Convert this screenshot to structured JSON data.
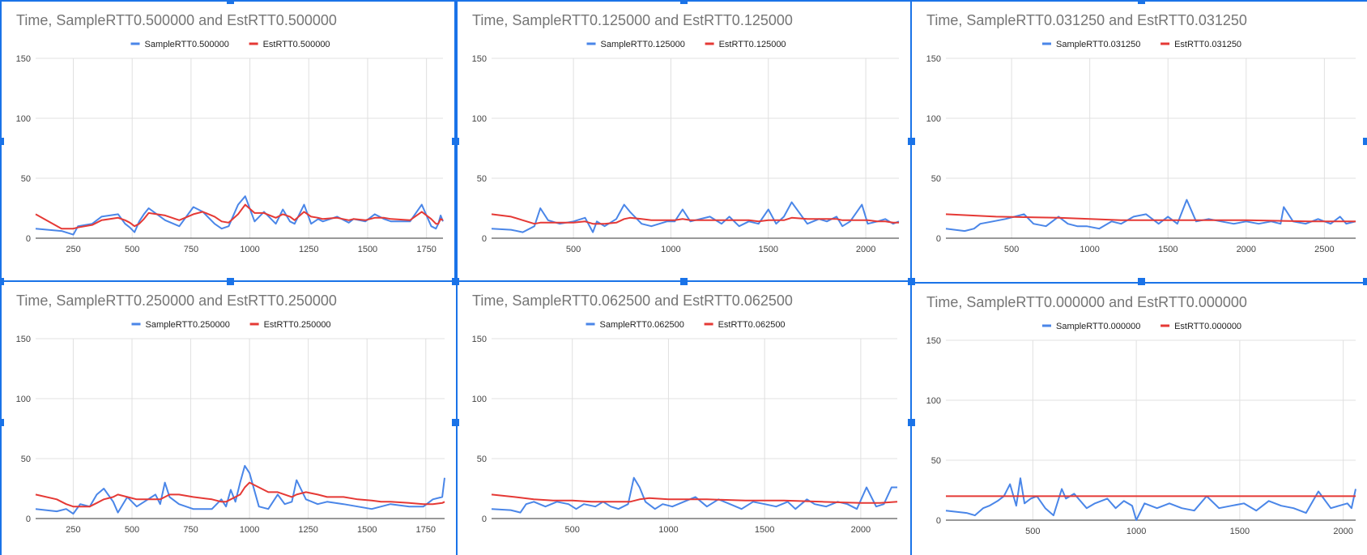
{
  "colors": {
    "sample": "#4a86e8",
    "est": "#e53935",
    "selection": "#1a73e8"
  },
  "chart_data": [
    {
      "type": "line",
      "title": "Time, SampleRTT0.500000 and EstRTT0.500000",
      "xlim": [
        90,
        1820
      ],
      "ylim": [
        0,
        150
      ],
      "xticks": [
        250,
        500,
        750,
        1000,
        1250,
        1500,
        1750
      ],
      "yticks": [
        0,
        50,
        100,
        150
      ],
      "series": [
        {
          "name": "SampleRTT0.500000",
          "x": [
            90,
            200,
            250,
            270,
            330,
            370,
            440,
            470,
            490,
            510,
            530,
            550,
            570,
            640,
            700,
            760,
            800,
            850,
            880,
            910,
            950,
            980,
            1020,
            1060,
            1110,
            1140,
            1170,
            1190,
            1230,
            1260,
            1290,
            1310,
            1370,
            1420,
            1440,
            1490,
            1530,
            1570,
            1600,
            1680,
            1730,
            1770,
            1790,
            1800,
            1810,
            1820
          ],
          "y": [
            8,
            6,
            3,
            10,
            12,
            18,
            20,
            12,
            9,
            5,
            14,
            20,
            25,
            15,
            10,
            26,
            22,
            12,
            8,
            10,
            28,
            35,
            14,
            22,
            12,
            24,
            14,
            12,
            28,
            12,
            16,
            14,
            18,
            13,
            16,
            14,
            20,
            16,
            14,
            14,
            28,
            10,
            8,
            12,
            19,
            14
          ]
        },
        {
          "name": "EstRTT0.500000",
          "x": [
            90,
            200,
            250,
            270,
            330,
            370,
            440,
            470,
            490,
            510,
            530,
            550,
            570,
            640,
            700,
            760,
            800,
            850,
            880,
            910,
            950,
            980,
            1020,
            1060,
            1110,
            1140,
            1170,
            1190,
            1230,
            1260,
            1290,
            1310,
            1370,
            1420,
            1440,
            1490,
            1530,
            1570,
            1600,
            1680,
            1730,
            1770,
            1790,
            1800,
            1810,
            1820
          ],
          "y": [
            20,
            8,
            8,
            9,
            11,
            15,
            17,
            15,
            13,
            10,
            12,
            16,
            21,
            19,
            15,
            20,
            22,
            18,
            14,
            13,
            20,
            28,
            21,
            21,
            17,
            20,
            18,
            15,
            22,
            18,
            17,
            16,
            17,
            15,
            16,
            15,
            17,
            17,
            16,
            15,
            22,
            16,
            12,
            12,
            16,
            15
          ]
        }
      ]
    },
    {
      "type": "line",
      "title": "Time, SampleRTT0.125000 and EstRTT0.125000",
      "xlim": [
        80,
        2170
      ],
      "ylim": [
        0,
        150
      ],
      "xticks": [
        500,
        1000,
        1500,
        2000
      ],
      "yticks": [
        0,
        50,
        100,
        150
      ],
      "series": [
        {
          "name": "SampleRTT0.125000",
          "x": [
            80,
            180,
            240,
            300,
            330,
            370,
            430,
            500,
            560,
            600,
            620,
            660,
            720,
            760,
            790,
            850,
            900,
            980,
            1020,
            1060,
            1100,
            1150,
            1200,
            1260,
            1300,
            1350,
            1400,
            1450,
            1500,
            1540,
            1580,
            1620,
            1700,
            1760,
            1800,
            1850,
            1880,
            1920,
            1980,
            2010,
            2060,
            2100,
            2140,
            2170
          ],
          "y": [
            8,
            7,
            5,
            10,
            25,
            15,
            12,
            14,
            17,
            5,
            14,
            10,
            16,
            28,
            22,
            12,
            10,
            14,
            14,
            24,
            14,
            16,
            18,
            12,
            18,
            10,
            14,
            12,
            24,
            12,
            18,
            30,
            12,
            16,
            14,
            18,
            10,
            14,
            28,
            12,
            14,
            16,
            12,
            14
          ]
        },
        {
          "name": "EstRTT0.125000",
          "x": [
            80,
            180,
            240,
            300,
            330,
            370,
            430,
            500,
            560,
            600,
            620,
            660,
            720,
            760,
            790,
            850,
            900,
            980,
            1020,
            1060,
            1100,
            1150,
            1200,
            1260,
            1300,
            1350,
            1400,
            1450,
            1500,
            1540,
            1580,
            1620,
            1700,
            1760,
            1800,
            1850,
            1880,
            1920,
            1980,
            2010,
            2060,
            2100,
            2140,
            2170
          ],
          "y": [
            20,
            18,
            15,
            12,
            13,
            13,
            13,
            13,
            14,
            12,
            12,
            12,
            13,
            16,
            17,
            16,
            15,
            15,
            15,
            16,
            15,
            15,
            15,
            15,
            15,
            15,
            15,
            14,
            15,
            15,
            15,
            17,
            16,
            16,
            16,
            16,
            15,
            15,
            15,
            15,
            14,
            14,
            13,
            13
          ]
        }
      ]
    },
    {
      "type": "line",
      "title": "Time, SampleRTT0.031250 and EstRTT0.031250",
      "xlim": [
        80,
        2700
      ],
      "ylim": [
        0,
        150
      ],
      "xticks": [
        500,
        1000,
        1500,
        2000,
        2500
      ],
      "yticks": [
        0,
        50,
        100,
        150
      ],
      "series": [
        {
          "name": "SampleRTT0.031250",
          "x": [
            80,
            200,
            260,
            300,
            380,
            460,
            520,
            580,
            640,
            720,
            800,
            860,
            920,
            980,
            1060,
            1140,
            1200,
            1280,
            1360,
            1440,
            1500,
            1560,
            1620,
            1680,
            1760,
            1840,
            1920,
            2000,
            2080,
            2160,
            2220,
            2240,
            2300,
            2380,
            2460,
            2540,
            2600,
            2640,
            2700
          ],
          "y": [
            8,
            6,
            8,
            12,
            14,
            16,
            18,
            20,
            12,
            10,
            18,
            12,
            10,
            10,
            8,
            14,
            12,
            18,
            20,
            12,
            18,
            12,
            32,
            14,
            16,
            14,
            12,
            14,
            12,
            14,
            12,
            26,
            14,
            12,
            16,
            12,
            18,
            12,
            14
          ]
        },
        {
          "name": "EstRTT0.031250",
          "x": [
            80,
            400,
            800,
            1200,
            1600,
            2000,
            2400,
            2700
          ],
          "y": [
            20,
            18,
            17,
            15,
            15,
            15,
            14,
            14
          ]
        }
      ]
    },
    {
      "type": "line",
      "title": "Time, SampleRTT0.250000 and EstRTT0.250000",
      "xlim": [
        90,
        1830
      ],
      "ylim": [
        0,
        150
      ],
      "xticks": [
        250,
        500,
        750,
        1000,
        1250,
        1500,
        1750
      ],
      "yticks": [
        0,
        50,
        100,
        150
      ],
      "series": [
        {
          "name": "SampleRTT0.250000",
          "x": [
            90,
            180,
            220,
            250,
            280,
            320,
            350,
            380,
            420,
            440,
            480,
            520,
            560,
            600,
            620,
            640,
            660,
            700,
            760,
            840,
            880,
            900,
            920,
            940,
            960,
            980,
            1000,
            1040,
            1080,
            1120,
            1150,
            1180,
            1200,
            1240,
            1290,
            1330,
            1400,
            1460,
            1520,
            1560,
            1600,
            1680,
            1740,
            1780,
            1820,
            1830
          ],
          "y": [
            8,
            6,
            8,
            4,
            12,
            10,
            20,
            25,
            14,
            5,
            18,
            10,
            15,
            20,
            12,
            30,
            18,
            12,
            8,
            8,
            16,
            10,
            24,
            14,
            30,
            44,
            38,
            10,
            8,
            20,
            12,
            14,
            32,
            16,
            12,
            14,
            12,
            10,
            8,
            10,
            12,
            10,
            10,
            16,
            18,
            34
          ]
        },
        {
          "name": "EstRTT0.250000",
          "x": [
            90,
            180,
            220,
            250,
            280,
            320,
            350,
            380,
            420,
            440,
            480,
            520,
            560,
            600,
            620,
            640,
            660,
            700,
            760,
            840,
            880,
            900,
            920,
            940,
            960,
            980,
            1000,
            1040,
            1080,
            1120,
            1150,
            1180,
            1200,
            1240,
            1290,
            1330,
            1400,
            1460,
            1520,
            1560,
            1600,
            1680,
            1740,
            1780,
            1820,
            1830
          ],
          "y": [
            20,
            16,
            12,
            10,
            10,
            10,
            13,
            16,
            18,
            20,
            18,
            16,
            16,
            16,
            16,
            18,
            20,
            20,
            18,
            16,
            14,
            14,
            16,
            18,
            20,
            26,
            30,
            26,
            22,
            22,
            20,
            18,
            20,
            22,
            20,
            18,
            18,
            16,
            15,
            14,
            14,
            13,
            12,
            12,
            13,
            14
          ]
        }
      ]
    },
    {
      "type": "line",
      "title": "Time, SampleRTT0.062500 and EstRTT0.062500",
      "xlim": [
        80,
        2190
      ],
      "ylim": [
        0,
        150
      ],
      "xticks": [
        500,
        1000,
        1500,
        2000
      ],
      "yticks": [
        0,
        50,
        100,
        150
      ],
      "series": [
        {
          "name": "SampleRTT0.062500",
          "x": [
            80,
            180,
            230,
            260,
            300,
            360,
            420,
            480,
            520,
            560,
            620,
            660,
            700,
            740,
            790,
            820,
            850,
            880,
            930,
            970,
            1020,
            1080,
            1140,
            1200,
            1260,
            1320,
            1380,
            1440,
            1500,
            1560,
            1620,
            1660,
            1720,
            1760,
            1820,
            1880,
            1930,
            1980,
            2030,
            2080,
            2120,
            2160,
            2190
          ],
          "y": [
            8,
            7,
            5,
            12,
            14,
            10,
            14,
            12,
            8,
            12,
            10,
            14,
            10,
            8,
            12,
            34,
            26,
            14,
            8,
            12,
            10,
            14,
            18,
            10,
            16,
            12,
            8,
            14,
            12,
            10,
            14,
            8,
            16,
            12,
            10,
            14,
            12,
            8,
            26,
            10,
            12,
            26,
            26
          ]
        },
        {
          "name": "EstRTT0.062500",
          "x": [
            80,
            200,
            300,
            400,
            500,
            600,
            700,
            800,
            850,
            900,
            1000,
            1200,
            1400,
            1600,
            1800,
            2000,
            2100,
            2190
          ],
          "y": [
            20,
            18,
            16,
            15,
            15,
            14,
            14,
            14,
            16,
            17,
            16,
            16,
            15,
            15,
            14,
            13,
            13,
            14
          ]
        }
      ]
    },
    {
      "type": "line",
      "title": "Time, SampleRTT0.000000 and EstRTT0.000000",
      "xlim": [
        80,
        2060
      ],
      "ylim": [
        0,
        150
      ],
      "xticks": [
        500,
        1000,
        1500,
        2000
      ],
      "yticks": [
        0,
        50,
        100,
        150
      ],
      "series": [
        {
          "name": "SampleRTT0.000000",
          "x": [
            80,
            180,
            220,
            260,
            290,
            330,
            360,
            390,
            420,
            440,
            460,
            490,
            520,
            560,
            600,
            640,
            660,
            700,
            760,
            800,
            860,
            900,
            940,
            980,
            1000,
            1040,
            1100,
            1160,
            1220,
            1280,
            1340,
            1400,
            1460,
            1520,
            1580,
            1640,
            1700,
            1760,
            1820,
            1880,
            1940,
            1980,
            2020,
            2040,
            2060
          ],
          "y": [
            8,
            6,
            4,
            10,
            12,
            16,
            20,
            30,
            12,
            35,
            14,
            18,
            20,
            10,
            4,
            26,
            18,
            22,
            10,
            14,
            18,
            10,
            16,
            12,
            0,
            14,
            10,
            14,
            10,
            8,
            20,
            10,
            12,
            14,
            8,
            16,
            12,
            10,
            6,
            24,
            10,
            12,
            14,
            10,
            26
          ]
        },
        {
          "name": "EstRTT0.000000",
          "x": [
            80,
            2060
          ],
          "y": [
            20,
            20
          ]
        }
      ]
    }
  ]
}
